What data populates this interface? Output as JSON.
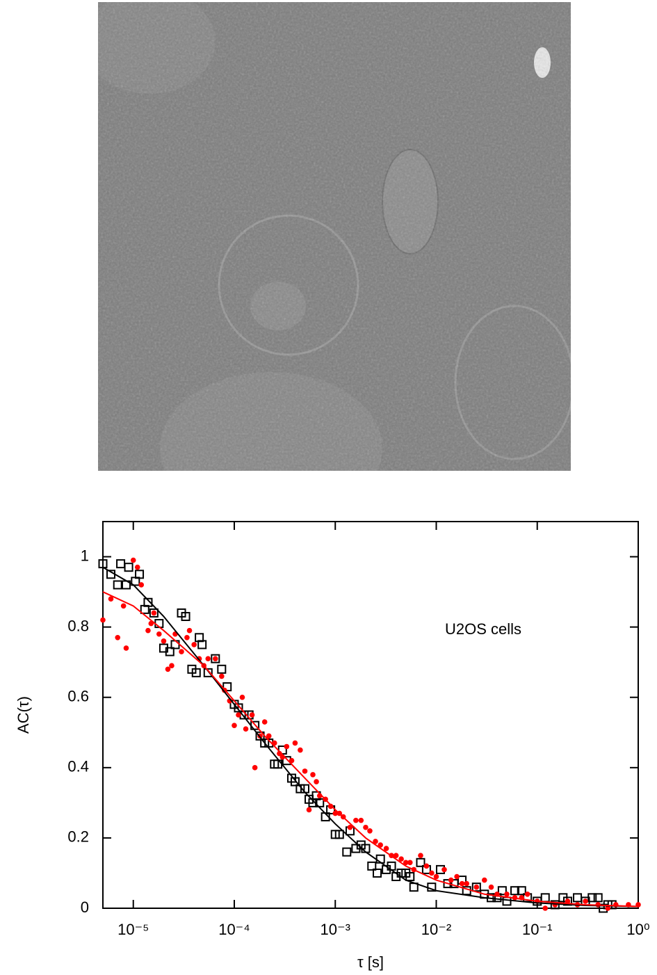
{
  "chart_data": {
    "type": "scatter",
    "x_label": "τ [s]",
    "y_label": "AC(τ)",
    "annotation": "U2OS cells",
    "xscale": "log",
    "xlim": [
      5e-06,
      1
    ],
    "ylim": [
      0,
      1.1
    ],
    "xticks": [
      {
        "value": 1e-05,
        "label": "10⁻⁵"
      },
      {
        "value": 0.0001,
        "label": "10⁻⁴"
      },
      {
        "value": 0.001,
        "label": "10⁻³"
      },
      {
        "value": 0.01,
        "label": "10⁻²"
      },
      {
        "value": 0.1,
        "label": "10⁻¹"
      },
      {
        "value": 1,
        "label": "10⁰"
      }
    ],
    "yticks": [
      0,
      0.2,
      0.4,
      0.6,
      0.8,
      1
    ],
    "series": [
      {
        "type": "scatter",
        "marker": "square",
        "color": "#000000",
        "x": [
          5e-06,
          6e-06,
          7e-06,
          7.5e-06,
          8.5e-06,
          9e-06,
          1.05e-05,
          1.15e-05,
          1.3e-05,
          1.4e-05,
          1.6e-05,
          1.8e-05,
          2e-05,
          2.3e-05,
          2.6e-05,
          3e-05,
          3.3e-05,
          3.8e-05,
          4.2e-05,
          4.5e-05,
          4.8e-05,
          5.5e-05,
          6.5e-05,
          7.5e-05,
          8.5e-05,
          0.0001,
          0.00011,
          0.000125,
          0.00014,
          0.00016,
          0.00018,
          0.0002,
          0.00022,
          0.00025,
          0.00027,
          0.0003,
          0.00033,
          0.00037,
          0.0004,
          0.00045,
          0.0005,
          0.00055,
          0.0006,
          0.00065,
          0.0007,
          0.0008,
          0.0009,
          0.001,
          0.0011,
          0.0013,
          0.0014,
          0.0016,
          0.0018,
          0.002,
          0.0023,
          0.0026,
          0.0028,
          0.0032,
          0.0036,
          0.004,
          0.0045,
          0.005,
          0.0055,
          0.006,
          0.007,
          0.008,
          0.009,
          0.011,
          0.013,
          0.015,
          0.018,
          0.02,
          0.025,
          0.03,
          0.035,
          0.04,
          0.045,
          0.05,
          0.06,
          0.07,
          0.08,
          0.1,
          0.12,
          0.15,
          0.18,
          0.2,
          0.25,
          0.3,
          0.35,
          0.4,
          0.45,
          0.5,
          0.55
        ],
        "values": [
          0.98,
          0.95,
          0.92,
          0.98,
          0.92,
          0.97,
          0.93,
          0.95,
          0.85,
          0.87,
          0.84,
          0.81,
          0.74,
          0.73,
          0.75,
          0.84,
          0.83,
          0.68,
          0.67,
          0.77,
          0.75,
          0.67,
          0.71,
          0.68,
          0.63,
          0.58,
          0.57,
          0.55,
          0.55,
          0.52,
          0.49,
          0.47,
          0.47,
          0.41,
          0.41,
          0.45,
          0.42,
          0.37,
          0.36,
          0.34,
          0.34,
          0.31,
          0.3,
          0.32,
          0.3,
          0.26,
          0.28,
          0.21,
          0.21,
          0.16,
          0.22,
          0.17,
          0.18,
          0.17,
          0.12,
          0.1,
          0.14,
          0.11,
          0.12,
          0.09,
          0.1,
          0.1,
          0.09,
          0.06,
          0.13,
          0.11,
          0.06,
          0.11,
          0.07,
          0.07,
          0.08,
          0.05,
          0.06,
          0.04,
          0.03,
          0.03,
          0.05,
          0.02,
          0.05,
          0.05,
          0.03,
          0.02,
          0.03,
          0.01,
          0.03,
          0.02,
          0.03,
          0.02,
          0.03,
          0.03,
          0,
          0.01,
          0.01
        ]
      },
      {
        "type": "scatter",
        "marker": "circle",
        "color": "#ff0000",
        "x": [
          5e-06,
          6e-06,
          7e-06,
          8e-06,
          8.5e-06,
          1e-05,
          1.1e-05,
          1.2e-05,
          1.4e-05,
          1.5e-05,
          1.6e-05,
          1.8e-05,
          2e-05,
          2.2e-05,
          2.4e-05,
          2.6e-05,
          3e-05,
          3.4e-05,
          3.6e-05,
          4e-05,
          4.5e-05,
          5e-05,
          5.5e-05,
          6.5e-05,
          7.5e-05,
          8e-05,
          9e-05,
          0.0001,
          0.00011,
          0.00012,
          0.00013,
          0.00015,
          0.00016,
          0.00018,
          0.0002,
          0.00022,
          0.00025,
          0.00028,
          0.0003,
          0.00033,
          0.00037,
          0.0004,
          0.00045,
          0.0005,
          0.00055,
          0.0006,
          0.00065,
          0.0007,
          0.0008,
          0.0009,
          0.001,
          0.0011,
          0.0012,
          0.0014,
          0.0016,
          0.0018,
          0.002,
          0.0022,
          0.0025,
          0.0028,
          0.0032,
          0.0036,
          0.004,
          0.0045,
          0.005,
          0.0055,
          0.006,
          0.007,
          0.008,
          0.009,
          0.01,
          0.012,
          0.014,
          0.016,
          0.018,
          0.02,
          0.025,
          0.03,
          0.035,
          0.04,
          0.05,
          0.06,
          0.07,
          0.08,
          0.1,
          0.12,
          0.15,
          0.2,
          0.25,
          0.3,
          0.4,
          0.5,
          0.6,
          0.8,
          1
        ],
        "values": [
          0.82,
          0.88,
          0.77,
          0.86,
          0.74,
          0.99,
          0.97,
          0.92,
          0.79,
          0.81,
          0.84,
          0.78,
          0.76,
          0.68,
          0.69,
          0.78,
          0.73,
          0.77,
          0.79,
          0.75,
          0.71,
          0.69,
          0.71,
          0.71,
          0.66,
          0.62,
          0.59,
          0.52,
          0.55,
          0.6,
          0.51,
          0.55,
          0.4,
          0.49,
          0.53,
          0.49,
          0.47,
          0.44,
          0.43,
          0.46,
          0.42,
          0.47,
          0.45,
          0.39,
          0.28,
          0.38,
          0.36,
          0.32,
          0.31,
          0.29,
          0.27,
          0.27,
          0.26,
          0.23,
          0.25,
          0.25,
          0.23,
          0.22,
          0.19,
          0.18,
          0.17,
          0.15,
          0.15,
          0.14,
          0.13,
          0.13,
          0.11,
          0.15,
          0.12,
          0.1,
          0.09,
          0.11,
          0.08,
          0.09,
          0.07,
          0.07,
          0.06,
          0.08,
          0.06,
          0.04,
          0.04,
          0.03,
          0.03,
          0.04,
          0.02,
          0,
          0.01,
          0.02,
          0.01,
          0.02,
          0.01,
          0,
          0.01,
          0.01,
          0.01
        ]
      },
      {
        "type": "line",
        "color": "#000000",
        "x": [
          5e-06,
          1e-05,
          2e-05,
          5e-05,
          0.0001,
          0.0002,
          0.0005,
          0.001,
          0.002,
          0.005,
          0.01,
          0.03,
          0.1,
          0.3,
          1
        ],
        "values": [
          0.97,
          0.92,
          0.83,
          0.69,
          0.58,
          0.47,
          0.33,
          0.24,
          0.16,
          0.08,
          0.05,
          0.03,
          0.015,
          0.008,
          0.005
        ]
      },
      {
        "type": "line",
        "color": "#ff0000",
        "x": [
          5e-06,
          1e-05,
          2e-05,
          5e-05,
          0.0001,
          0.0002,
          0.0005,
          0.001,
          0.002,
          0.005,
          0.01,
          0.03,
          0.1,
          0.3,
          1
        ],
        "values": [
          0.9,
          0.86,
          0.79,
          0.69,
          0.59,
          0.49,
          0.37,
          0.28,
          0.2,
          0.12,
          0.08,
          0.04,
          0.02,
          0.01,
          0.005
        ]
      }
    ]
  }
}
